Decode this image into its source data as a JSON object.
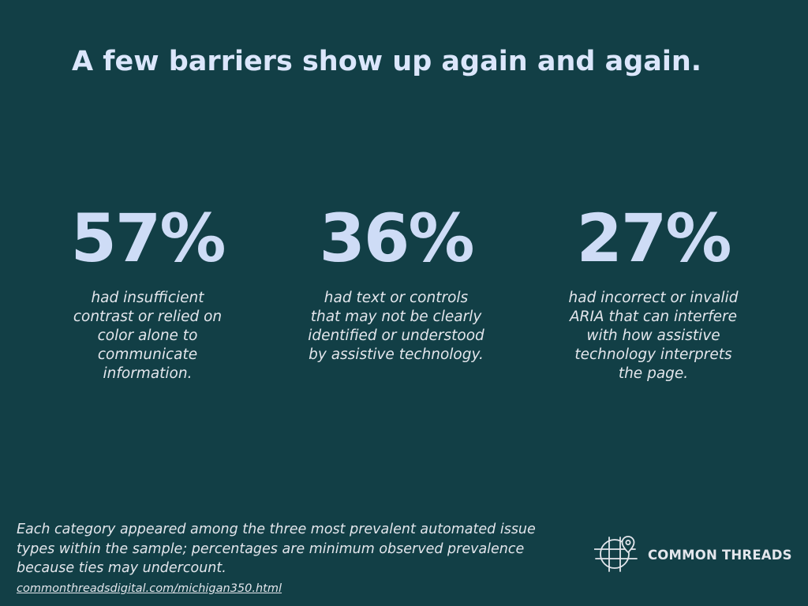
{
  "slide": {
    "title": "A few barriers show up again and again."
  },
  "stats": [
    {
      "value": "57%",
      "description": "had insufficient contrast or relied on color alone to communicate information."
    },
    {
      "value": "36%",
      "description": "had text or controls that may not be clearly identified or understood by assistive technology."
    },
    {
      "value": "27%",
      "description": "had incorrect or invalid ARIA that can interfere with how assistive technology interprets the page."
    }
  ],
  "footer": {
    "note": "Each category appeared among the three most prevalent automated issue types within the sample; percentages are minimum observed prevalence because ties may undercount.",
    "link": "commonthreadsdigital.com/michigan350.html"
  },
  "brand": {
    "name": "COMMON THREADS",
    "icon": "globe-location-pin-icon"
  },
  "colors": {
    "background": "#123f46",
    "title": "#dbe6fb",
    "stat_value": "#cedcf6",
    "body_text": "#e3e6ec"
  }
}
